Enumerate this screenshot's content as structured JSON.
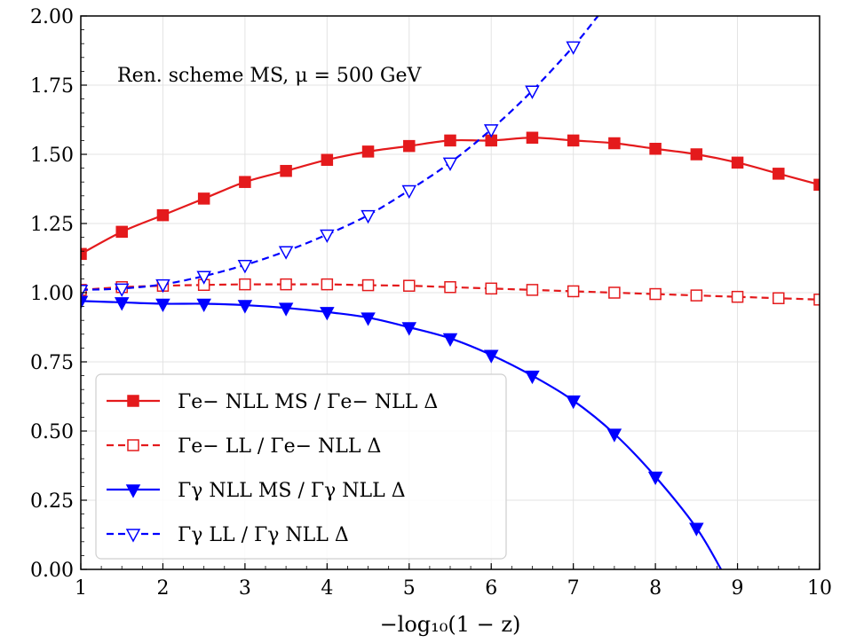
{
  "chart_data": {
    "type": "line",
    "xlabel": "−log₁₀(1 − z)",
    "ylabel": "",
    "xlim": [
      1,
      10
    ],
    "ylim": [
      0,
      2
    ],
    "xticks": [
      1,
      2,
      3,
      4,
      5,
      6,
      7,
      8,
      9,
      10
    ],
    "xtick_labels": [
      "1",
      "2",
      "3",
      "4",
      "5",
      "6",
      "7",
      "8",
      "9",
      "10"
    ],
    "yticks": [
      0,
      0.25,
      0.5,
      0.75,
      1.0,
      1.25,
      1.5,
      1.75,
      2.0
    ],
    "ytick_labels": [
      "0.00",
      "0.25",
      "0.50",
      "0.75",
      "1.00",
      "1.25",
      "1.50",
      "1.75",
      "2.00"
    ],
    "grid": true,
    "legend_position": "lower-left",
    "annotation": "Ren. scheme MS, μ = 500 GeV",
    "series": [
      {
        "name": "Γe− NLL MS / Γe− NLL Δ",
        "color": "#e41a1c",
        "line": "solid",
        "marker": "square-filled",
        "x": [
          1,
          1.5,
          2,
          2.5,
          3,
          3.5,
          4,
          4.5,
          5,
          5.5,
          6,
          6.5,
          7,
          7.5,
          8,
          8.5,
          9,
          9.5,
          10
        ],
        "y": [
          1.14,
          1.22,
          1.28,
          1.34,
          1.4,
          1.44,
          1.48,
          1.51,
          1.53,
          1.55,
          1.55,
          1.56,
          1.55,
          1.54,
          1.52,
          1.5,
          1.47,
          1.43,
          1.39
        ]
      },
      {
        "name": "Γe− LL / Γe− NLL Δ",
        "color": "#e41a1c",
        "line": "dashed",
        "marker": "square-open",
        "x": [
          1,
          1.5,
          2,
          2.5,
          3,
          3.5,
          4,
          4.5,
          5,
          5.5,
          6,
          6.5,
          7,
          7.5,
          8,
          8.5,
          9,
          9.5,
          10
        ],
        "y": [
          1.01,
          1.02,
          1.025,
          1.028,
          1.03,
          1.03,
          1.03,
          1.027,
          1.025,
          1.02,
          1.015,
          1.01,
          1.005,
          1.0,
          0.995,
          0.99,
          0.985,
          0.98,
          0.975
        ]
      },
      {
        "name": "Γγ NLL MS / Γγ NLL Δ",
        "color": "#0000ff",
        "line": "solid",
        "marker": "triangle-down-filled",
        "x": [
          1,
          1.5,
          2,
          2.5,
          3,
          3.5,
          4,
          4.5,
          5,
          5.5,
          6,
          6.5,
          7,
          7.5,
          8,
          8.5,
          8.8
        ],
        "y": [
          0.97,
          0.965,
          0.96,
          0.96,
          0.955,
          0.945,
          0.93,
          0.91,
          0.875,
          0.835,
          0.775,
          0.7,
          0.61,
          0.49,
          0.335,
          0.15,
          0.0
        ]
      },
      {
        "name": "Γγ LL / Γγ NLL Δ",
        "color": "#0000ff",
        "line": "dashed",
        "marker": "triangle-down-open",
        "x": [
          1,
          1.5,
          2,
          2.5,
          3,
          3.5,
          4,
          4.5,
          5,
          5.5,
          6,
          6.5,
          7,
          7.3
        ],
        "y": [
          1.01,
          1.015,
          1.03,
          1.06,
          1.1,
          1.15,
          1.21,
          1.28,
          1.37,
          1.47,
          1.59,
          1.73,
          1.89,
          2.0
        ]
      }
    ]
  }
}
